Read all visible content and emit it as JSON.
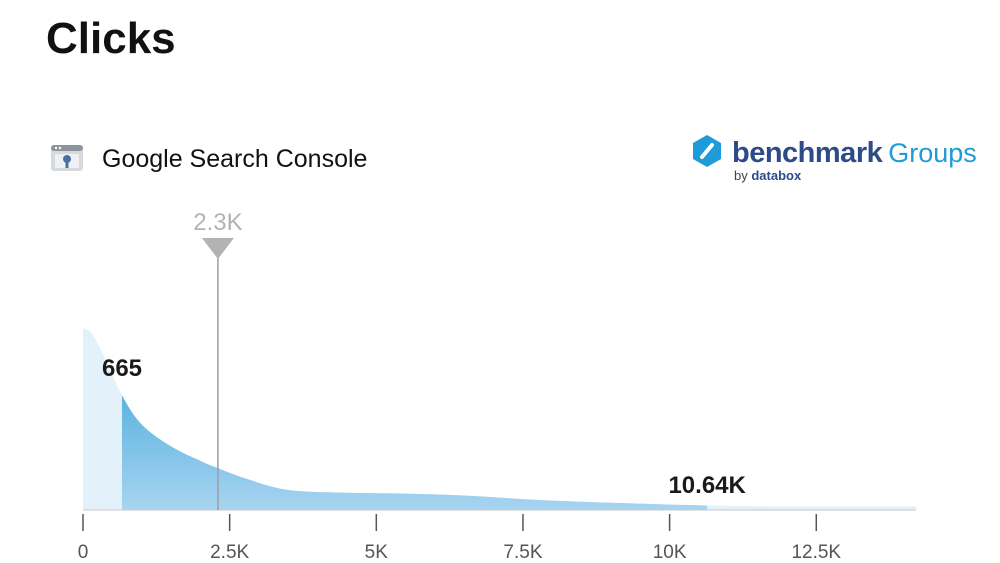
{
  "title": "Clicks",
  "source": {
    "label": "Google Search Console",
    "icon": "search-console-icon"
  },
  "brand": {
    "name": "benchmark",
    "suffix": "Groups",
    "by_prefix": "by",
    "by_name": "databox",
    "color_primary": "#2d4b86",
    "color_accent": "#1f9bd7"
  },
  "chart_data": {
    "type": "area",
    "title": "Clicks",
    "xlabel": "",
    "ylabel": "",
    "x_ticks": [
      "0",
      "2.5K",
      "5K",
      "7.5K",
      "10K",
      "12.5K"
    ],
    "x_tick_values": [
      0,
      2500,
      5000,
      7500,
      10000,
      12500
    ],
    "xlim": [
      0,
      14200
    ],
    "curve_x": [
      0,
      150,
      350,
      665,
      1000,
      1500,
      2000,
      2300,
      2800,
      3500,
      4500,
      5500,
      6500,
      7500,
      8500,
      9500,
      10640,
      12000,
      14200
    ],
    "curve_y": [
      1.0,
      0.97,
      0.85,
      0.63,
      0.47,
      0.35,
      0.27,
      0.23,
      0.17,
      0.11,
      0.095,
      0.09,
      0.08,
      0.06,
      0.045,
      0.035,
      0.025,
      0.02,
      0.02
    ],
    "range_low": {
      "value": 665,
      "label": "665"
    },
    "range_high": {
      "value": 10640,
      "label": "10.64K"
    },
    "marker": {
      "value": 2300,
      "label": "2.3K"
    },
    "colors": {
      "light_fill": "#e3f1fa",
      "range_fill_top": "#2f9fd8",
      "range_fill_bottom": "#a8d4f0",
      "marker": "#b3b3b3",
      "axis": "#c8c8c8"
    }
  }
}
